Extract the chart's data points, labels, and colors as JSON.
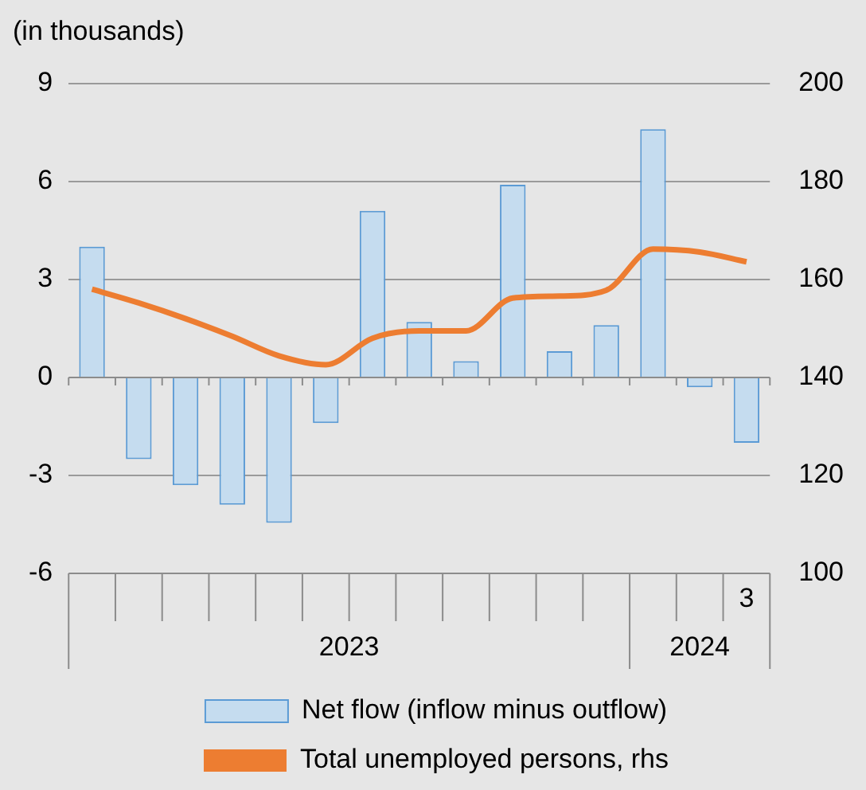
{
  "chart_data": {
    "type": "bar",
    "title": "(in thousands)",
    "categories": [
      null,
      null,
      null,
      null,
      null,
      null,
      null,
      null,
      null,
      null,
      null,
      null,
      null,
      null,
      "3"
    ],
    "series": [
      {
        "name": "Net flow (inflow minus outflow)",
        "color": "#c5dcef",
        "values": [
          4.0,
          -2.5,
          -3.3,
          -3.9,
          -4.45,
          -1.4,
          5.1,
          1.7,
          0.5,
          5.9,
          0.8,
          1.6,
          7.6,
          -0.3,
          -2.0
        ]
      },
      {
        "name": "Total unemployed persons, rhs",
        "type": "line",
        "axis": "y2",
        "color": "#ed7d31",
        "values": [
          158.0,
          155.2,
          152.0,
          148.4,
          144.4,
          142.6,
          148.0,
          149.5,
          149.5,
          156.2,
          156.6,
          157.8,
          166.2,
          165.6,
          163.6
        ]
      }
    ],
    "ylim": [
      -6,
      9
    ],
    "yticks": [
      -6,
      -3,
      0,
      3,
      6,
      9
    ],
    "y2lim": [
      100,
      200
    ],
    "y2ticks": [
      100,
      120,
      140,
      160,
      180,
      200
    ],
    "annotations": [
      "2023",
      "2024"
    ],
    "grid": "y",
    "legend": "bottom",
    "marker": "none"
  }
}
